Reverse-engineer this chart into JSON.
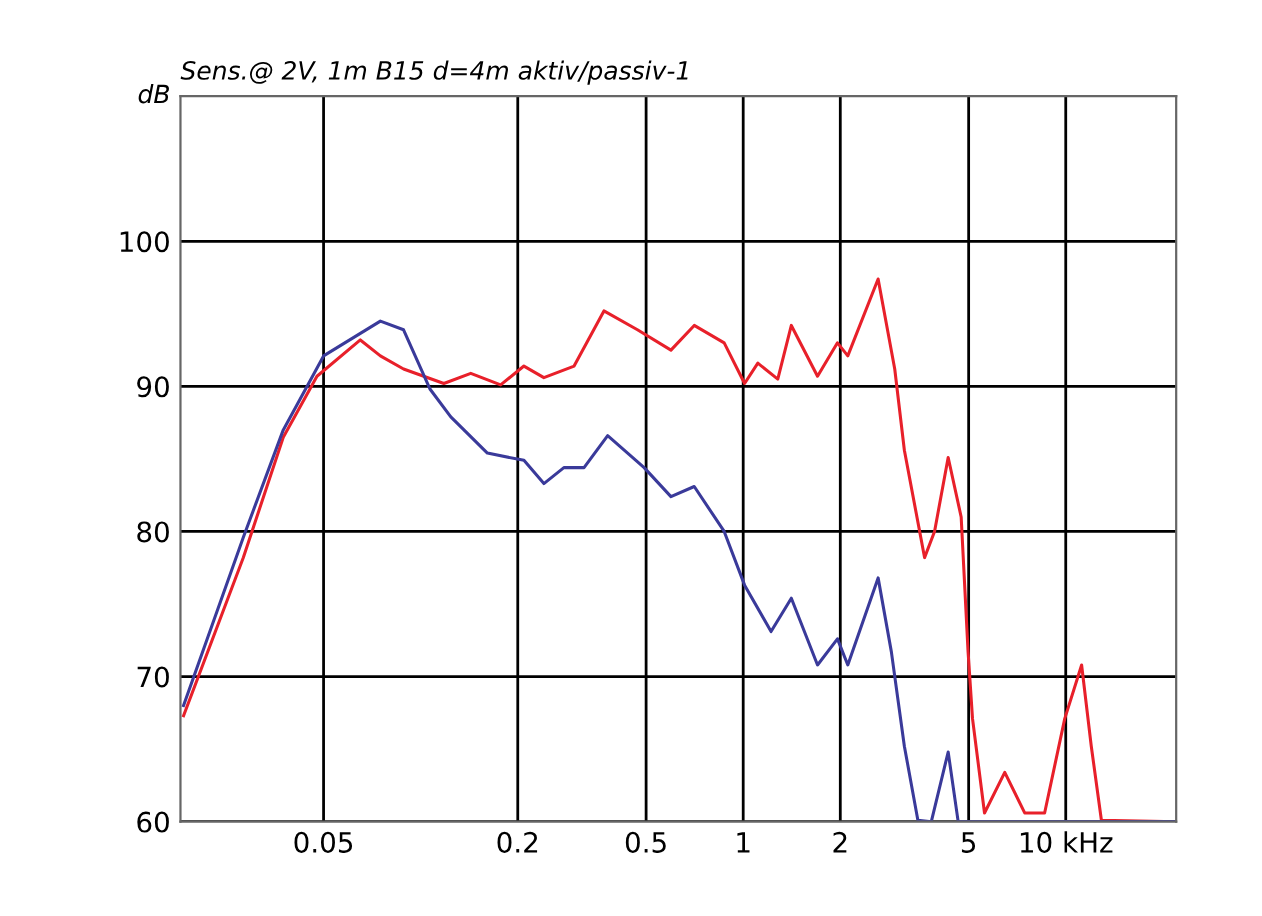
{
  "chart_data": {
    "type": "line",
    "title": "Sens.@ 2V, 1m B15 d=4m aktiv/passiv-1",
    "ylabel": "dB",
    "log": "x",
    "grid": true,
    "marker": "none",
    "line_style": "solid",
    "xlim": [
      0.018,
      22
    ],
    "xticks": [
      0.05,
      0.2,
      0.5,
      1,
      2,
      5,
      {
        "value": 10,
        "label": "10 kHz"
      }
    ],
    "ylim": [
      60,
      110
    ],
    "yticks": [
      60,
      70,
      80,
      90,
      100
    ],
    "series": [
      {
        "color": "#e8202a",
        "x": [
          0.0184,
          0.0282,
          0.0375,
          0.0477,
          0.065,
          0.075,
          0.0885,
          0.118,
          0.143,
          0.177,
          0.209,
          0.241,
          0.299,
          0.37,
          0.47,
          0.597,
          0.705,
          0.873,
          1.01,
          1.11,
          1.28,
          1.41,
          1.7,
          1.96,
          2.11,
          2.62,
          2.95,
          3.16,
          3.65,
          3.92,
          4.32,
          4.74,
          4.98,
          5.14,
          5.6,
          6.47,
          7.46,
          8.6,
          9.93,
          11.2,
          12.0,
          12.9,
          22
        ],
        "values": [
          67.3,
          78.2,
          86.5,
          90.7,
          93.2,
          92.1,
          91.2,
          90.2,
          90.9,
          90.1,
          91.4,
          90.6,
          91.4,
          95.2,
          93.9,
          92.5,
          94.2,
          93.0,
          90.2,
          91.6,
          90.5,
          94.2,
          90.7,
          93.0,
          92.1,
          97.4,
          91.2,
          85.6,
          78.2,
          80.0,
          85.1,
          81.0,
          71.7,
          67.1,
          60.6,
          63.4,
          60.6,
          60.6,
          67.1,
          70.8,
          65.2,
          60.1,
          60
        ]
      },
      {
        "color": "#3a3a9a",
        "x": [
          0.0184,
          0.0282,
          0.0375,
          0.05,
          0.075,
          0.0885,
          0.107,
          0.124,
          0.161,
          0.209,
          0.241,
          0.278,
          0.321,
          0.38,
          0.493,
          0.597,
          0.705,
          0.873,
          1.01,
          1.22,
          1.41,
          1.7,
          1.96,
          2.11,
          2.62,
          2.88,
          3.16,
          3.48,
          3.83,
          4.32,
          4.64,
          22
        ],
        "values": [
          68.0,
          79.6,
          87.0,
          92.1,
          94.5,
          93.9,
          89.8,
          87.9,
          85.4,
          84.9,
          83.3,
          84.4,
          84.4,
          86.6,
          84.4,
          82.4,
          83.1,
          80.0,
          76.3,
          73.1,
          75.4,
          70.8,
          72.6,
          70.8,
          76.8,
          71.7,
          65.2,
          60.1,
          60,
          64.8,
          60,
          60
        ]
      }
    ]
  }
}
